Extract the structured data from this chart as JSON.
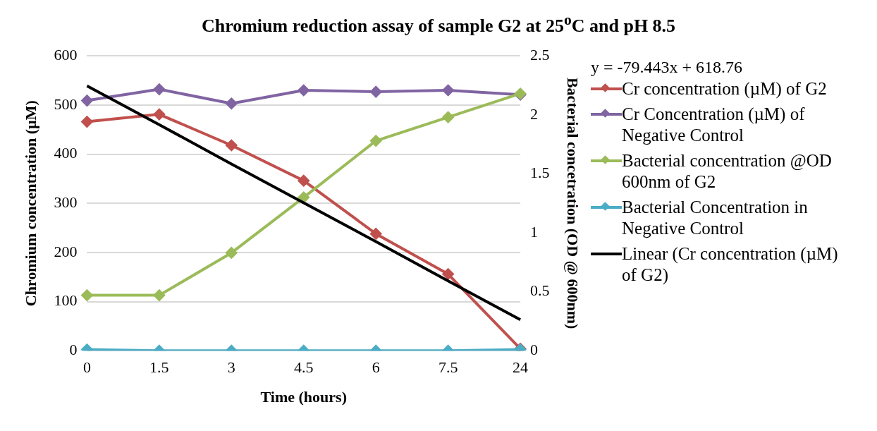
{
  "chart_data": {
    "type": "line",
    "title": "Chromium reduction assay of sample G2 at 25$^{o}$C and pH 8.5",
    "xlabel": "Time (hours)",
    "ylabel": "Chromium concentration (µM)",
    "y2label": "Bacterial concetration (OD @ 600nm)",
    "categories": [
      "0",
      "1.5",
      "3",
      "4.5",
      "6",
      "7.5",
      "24"
    ],
    "ylim": [
      0,
      600
    ],
    "yticks": [
      0,
      100,
      200,
      300,
      400,
      500,
      600
    ],
    "y2lim": [
      0,
      2.5
    ],
    "y2ticks": [
      0,
      0.5,
      1,
      1.5,
      2,
      2.5
    ],
    "grid": "y",
    "legend": "right",
    "marker": "diamond",
    "line_style": "solid",
    "annotations": [
      "y = -79.443x + 618.76"
    ],
    "series": [
      {
        "name": "Cr concentration (µM) of G2",
        "color": "#c0504d",
        "values": [
          466,
          481,
          418,
          346,
          238,
          156,
          4
        ]
      },
      {
        "name": "Cr Concentration (µM) of Negative Control",
        "color": "#8064a2",
        "values": [
          509,
          532,
          503,
          530,
          527,
          530,
          521
        ]
      },
      {
        "name": "Bacterial concentration @OD 600nm of G2",
        "color": "#9bbb59",
        "axis": "y2",
        "values": [
          0.47,
          0.47,
          0.83,
          1.3,
          1.78,
          1.98,
          2.18
        ]
      },
      {
        "name": "Bacterial Concentration in Negative Control",
        "color": "#4bacc6",
        "axis": "y2",
        "values": [
          0.01,
          0,
          0,
          0,
          0,
          0,
          0.01
        ]
      },
      {
        "name": "Linear (Cr concentration (µM) of G2)",
        "type": "line",
        "color": "#000000",
        "marker": "none",
        "values": [
          539,
          460,
          380,
          301,
          222,
          142,
          63
        ]
      }
    ]
  }
}
